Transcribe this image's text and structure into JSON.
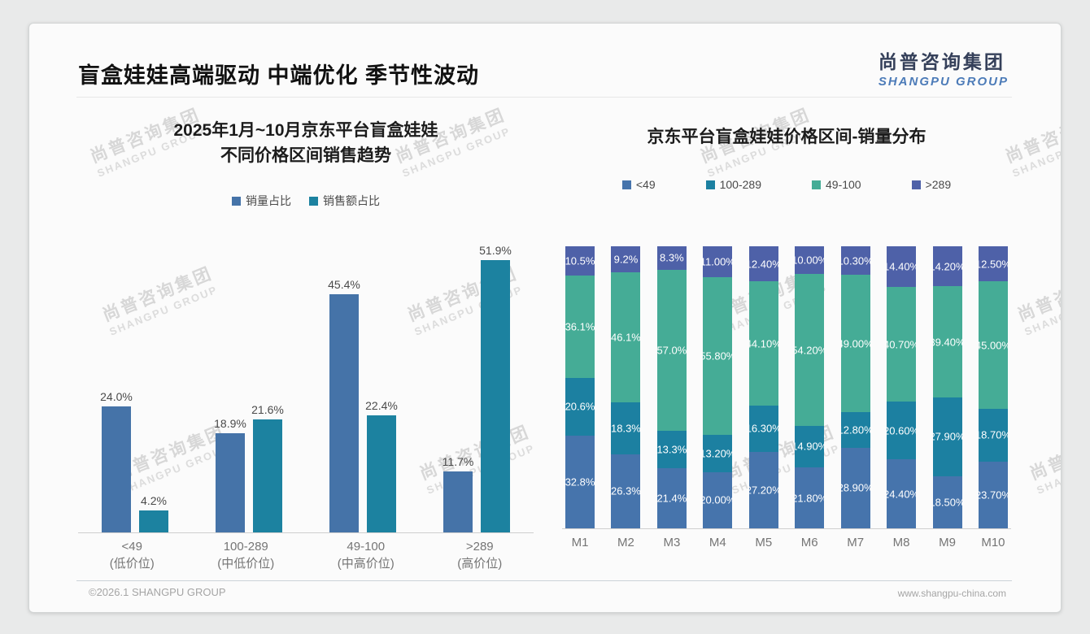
{
  "page": {
    "title": "盲盒娃娃高端驱动 中端优化 季节性波动",
    "logo": {
      "cn": "尚普咨询集团",
      "en": "SHANGPU GROUP"
    },
    "watermark": {
      "cn": "尚普咨询集团",
      "en": "SHANGPU GROUP"
    },
    "footer": {
      "left": "©2026.1 SHANGPU GROUP",
      "right": "www.shangpu-china.com"
    }
  },
  "colors": {
    "brand_navy": "#35405a",
    "brand_blue": "#4c7bb8",
    "series_blue": "#4573a8",
    "series_teal": "#1c82a0",
    "series_green": "#45ac96",
    "series_slate": "#4e61a8"
  },
  "chart_data": [
    {
      "type": "bar",
      "title_lines": [
        "2025年1月~10月京东平台盲盒娃娃",
        "不同价格区间销售趋势"
      ],
      "categories": [
        "<49",
        "100-289",
        "49-100",
        ">289"
      ],
      "category_sublabels": [
        "(低价位)",
        "(中低价位)",
        "(中高价位)",
        "(高价位)"
      ],
      "ylim": [
        0,
        55
      ],
      "grid": false,
      "legend_position": "top",
      "series": [
        {
          "name": "销量占比",
          "color": "#4573a8",
          "values": [
            24.0,
            18.9,
            45.4,
            11.7
          ],
          "labels": [
            "24.0%",
            "18.9%",
            "45.4%",
            "11.7%"
          ]
        },
        {
          "name": "销售额占比",
          "color": "#1c82a0",
          "values": [
            4.2,
            21.6,
            22.4,
            51.9
          ],
          "labels": [
            "4.2%",
            "21.6%",
            "22.4%",
            "51.9%"
          ]
        }
      ]
    },
    {
      "type": "stacked-bar-100",
      "title": "京东平台盲盒娃娃价格区间-销量分布",
      "categories": [
        "M1",
        "M2",
        "M3",
        "M4",
        "M5",
        "M6",
        "M7",
        "M8",
        "M9",
        "M10"
      ],
      "grid": false,
      "legend_position": "top",
      "stack_order": "bottom-to-top",
      "series": [
        {
          "name": "<49",
          "color": "#4674ac",
          "values": [
            32.8,
            26.3,
            21.4,
            20.0,
            27.2,
            21.8,
            28.9,
            24.4,
            18.5,
            23.7
          ],
          "labels": [
            "32.8%",
            "26.3%",
            "21.4%",
            "20.00%",
            "27.20%",
            "21.80%",
            "28.90%",
            "24.40%",
            "18.50%",
            "23.70%"
          ]
        },
        {
          "name": "100-289",
          "color": "#1c80a1",
          "values": [
            20.6,
            18.3,
            13.3,
            13.2,
            16.3,
            14.9,
            12.8,
            20.6,
            27.9,
            18.7
          ],
          "labels": [
            "20.6%",
            "18.3%",
            "13.3%",
            "13.20%",
            "16.30%",
            "14.90%",
            "12.80%",
            "20.60%",
            "27.90%",
            "18.70%"
          ]
        },
        {
          "name": "49-100",
          "color": "#45ac96",
          "values": [
            36.1,
            46.1,
            57.0,
            55.8,
            44.1,
            54.2,
            49.0,
            40.7,
            39.4,
            45.0
          ],
          "labels": [
            "36.1%",
            "46.1%",
            "57.0%",
            "55.80%",
            "44.10%",
            "54.20%",
            "49.00%",
            "40.70%",
            "39.40%",
            "45.00%"
          ]
        },
        {
          "name": ">289",
          "color": "#4e61a8",
          "values": [
            10.5,
            9.2,
            8.3,
            11.0,
            12.4,
            10.0,
            10.3,
            14.4,
            14.2,
            12.5
          ],
          "labels": [
            "10.5%",
            "9.2%",
            "8.3%",
            "11.00%",
            "12.40%",
            "10.00%",
            "10.30%",
            "14.40%",
            "14.20%",
            "12.50%"
          ]
        }
      ]
    }
  ]
}
